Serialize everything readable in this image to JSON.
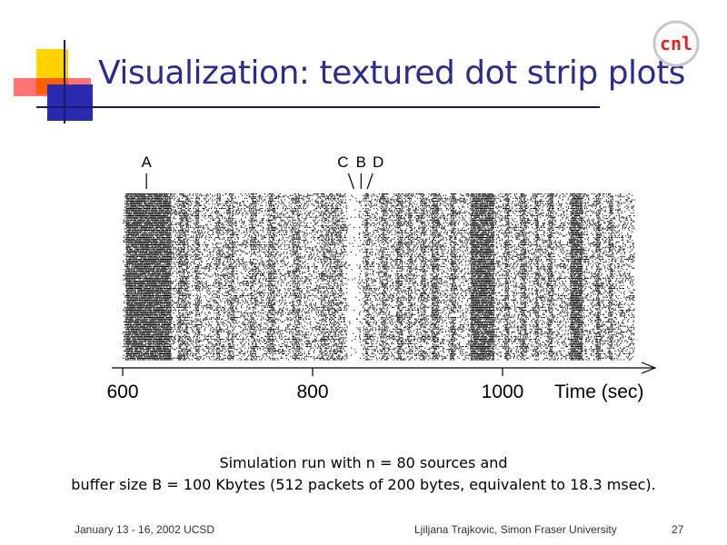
{
  "slide": {
    "title": "Visualization: textured dot strip plots",
    "logo_text": "cnl",
    "caption_line1": "Simulation run with n = 80 sources and",
    "caption_line2": "buffer size B = 100 Kbytes (512 packets of 200 bytes, equivalent to 18.3 msec).",
    "footer_left": "January 13 - 16, 2002 UCSD",
    "footer_center": "Ljiljana Trajkovic, Simon Fraser University",
    "page_number": "27",
    "colors": {
      "title": "#2c2c90",
      "accent_yellow": "#ffd200",
      "accent_red": "#ff0000",
      "accent_blue": "#2a2ab0",
      "logo_red": "#e32020"
    }
  },
  "chart_data": {
    "type": "textured dot strip plot",
    "xlabel": "Time (sec)",
    "ticks": [
      {
        "value": 600,
        "label": "600"
      },
      {
        "value": 800,
        "label": "800"
      },
      {
        "value": 1000,
        "label": "1000"
      }
    ],
    "xlim": [
      600,
      1170
    ],
    "markers": [
      {
        "label": "A",
        "x": 625
      },
      {
        "label": "C",
        "x": 832
      },
      {
        "label": "B",
        "x": 851
      },
      {
        "label": "D",
        "x": 869
      }
    ],
    "strip_extent": [
      600,
      1138
    ],
    "dense_bands": [
      [
        603,
        650,
        0.65
      ],
      [
        658,
        668,
        0.35
      ],
      [
        676,
        680,
        0.3
      ],
      [
        698,
        702,
        0.3
      ],
      [
        710,
        716,
        0.3
      ],
      [
        734,
        740,
        0.3
      ],
      [
        752,
        760,
        0.3
      ],
      [
        778,
        786,
        0.3
      ],
      [
        808,
        830,
        0.25
      ],
      [
        855,
        858,
        0.35
      ],
      [
        872,
        878,
        0.3
      ],
      [
        888,
        894,
        0.35
      ],
      [
        900,
        904,
        0.3
      ],
      [
        913,
        918,
        0.35
      ],
      [
        925,
        932,
        0.4
      ],
      [
        945,
        950,
        0.35
      ],
      [
        966,
        990,
        0.6
      ],
      [
        1002,
        1006,
        0.4
      ],
      [
        1018,
        1024,
        0.4
      ],
      [
        1034,
        1037,
        0.4
      ],
      [
        1047,
        1052,
        0.35
      ],
      [
        1071,
        1083,
        0.6
      ],
      [
        1098,
        1102,
        0.4
      ],
      [
        1111,
        1115,
        0.35
      ]
    ],
    "sparse_gaps": [
      [
        836,
        848
      ],
      [
        850,
        852
      ]
    ],
    "base_density": 0.13
  }
}
